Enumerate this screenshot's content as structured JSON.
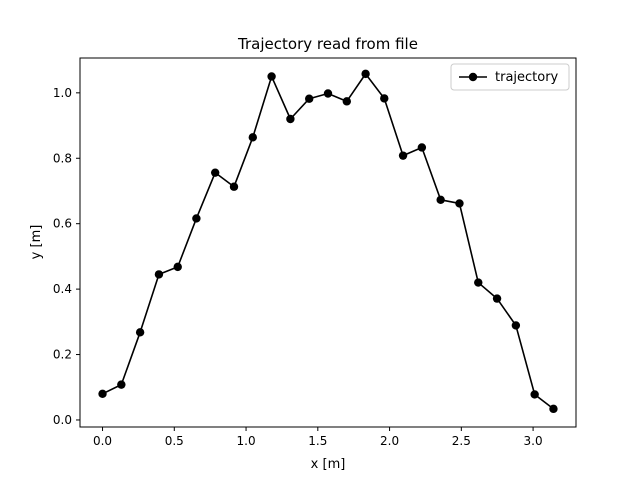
{
  "chart_data": {
    "type": "line",
    "title": "Trajectory read from file",
    "xlabel": "x [m]",
    "ylabel": "y [m]",
    "xlim": [
      -0.157,
      3.299
    ],
    "ylim": [
      -0.0215,
      1.1065
    ],
    "xticks": [
      0.0,
      0.5,
      1.0,
      1.5,
      2.0,
      2.5,
      3.0
    ],
    "xtick_labels": [
      "0.0",
      "0.5",
      "1.0",
      "1.5",
      "2.0",
      "2.5",
      "3.0"
    ],
    "yticks": [
      0.0,
      0.2,
      0.4,
      0.6,
      0.8,
      1.0
    ],
    "ytick_labels": [
      "0.0",
      "0.2",
      "0.4",
      "0.6",
      "0.8",
      "1.0"
    ],
    "grid": false,
    "legend_position": "top-right",
    "series": [
      {
        "name": "trajectory",
        "color": "#000000",
        "marker": "circle",
        "x": [
          0.0,
          0.131,
          0.262,
          0.393,
          0.524,
          0.654,
          0.785,
          0.916,
          1.047,
          1.178,
          1.309,
          1.44,
          1.571,
          1.702,
          1.833,
          1.963,
          2.094,
          2.225,
          2.356,
          2.487,
          2.618,
          2.749,
          2.88,
          3.011,
          3.142
        ],
        "y": [
          0.08,
          0.108,
          0.268,
          0.445,
          0.468,
          0.616,
          0.756,
          0.713,
          0.864,
          1.05,
          0.92,
          0.982,
          0.998,
          0.974,
          1.058,
          0.983,
          0.808,
          0.833,
          0.673,
          0.662,
          0.42,
          0.371,
          0.289,
          0.078,
          0.034
        ]
      }
    ]
  }
}
